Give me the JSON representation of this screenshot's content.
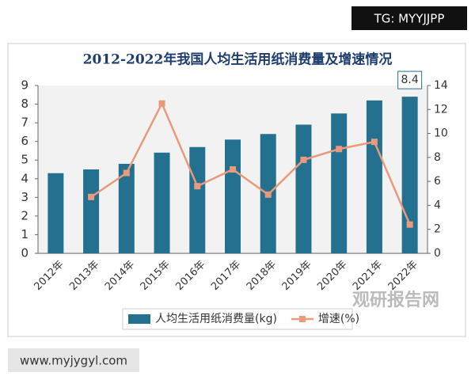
{
  "chart_data": {
    "type": "bar",
    "title": "2012-2022年我国人均生活用纸消费量及增速情况",
    "categories": [
      "2012年",
      "2013年",
      "2014年",
      "2015年",
      "2016年",
      "2017年",
      "2018年",
      "2019年",
      "2020年",
      "2021年",
      "2022年"
    ],
    "series": [
      {
        "name": "人均生活用纸消费量(kg)",
        "color": "#24708f",
        "values": [
          4.3,
          4.5,
          4.8,
          5.4,
          5.7,
          6.1,
          6.4,
          6.9,
          7.5,
          8.2,
          8.4
        ]
      },
      {
        "name": "增速(%)",
        "color": "#e89a7b",
        "type": "line",
        "axis": "y2",
        "values": [
          null,
          4.7,
          6.7,
          12.5,
          5.6,
          7.0,
          4.9,
          7.8,
          8.7,
          9.3,
          2.4
        ]
      }
    ],
    "ylim": [
      0,
      9
    ],
    "yticks": [
      0,
      1,
      2,
      3,
      4,
      5,
      6,
      7,
      8,
      9
    ],
    "y2lim": [
      0,
      14
    ],
    "y2ticks": [
      0,
      2,
      4,
      6,
      8,
      10,
      12,
      14
    ],
    "legend": "bottom",
    "watermarks": [
      "TG: MYYJJPP",
      "www.myjygyl.com",
      "观研报告网"
    ]
  }
}
